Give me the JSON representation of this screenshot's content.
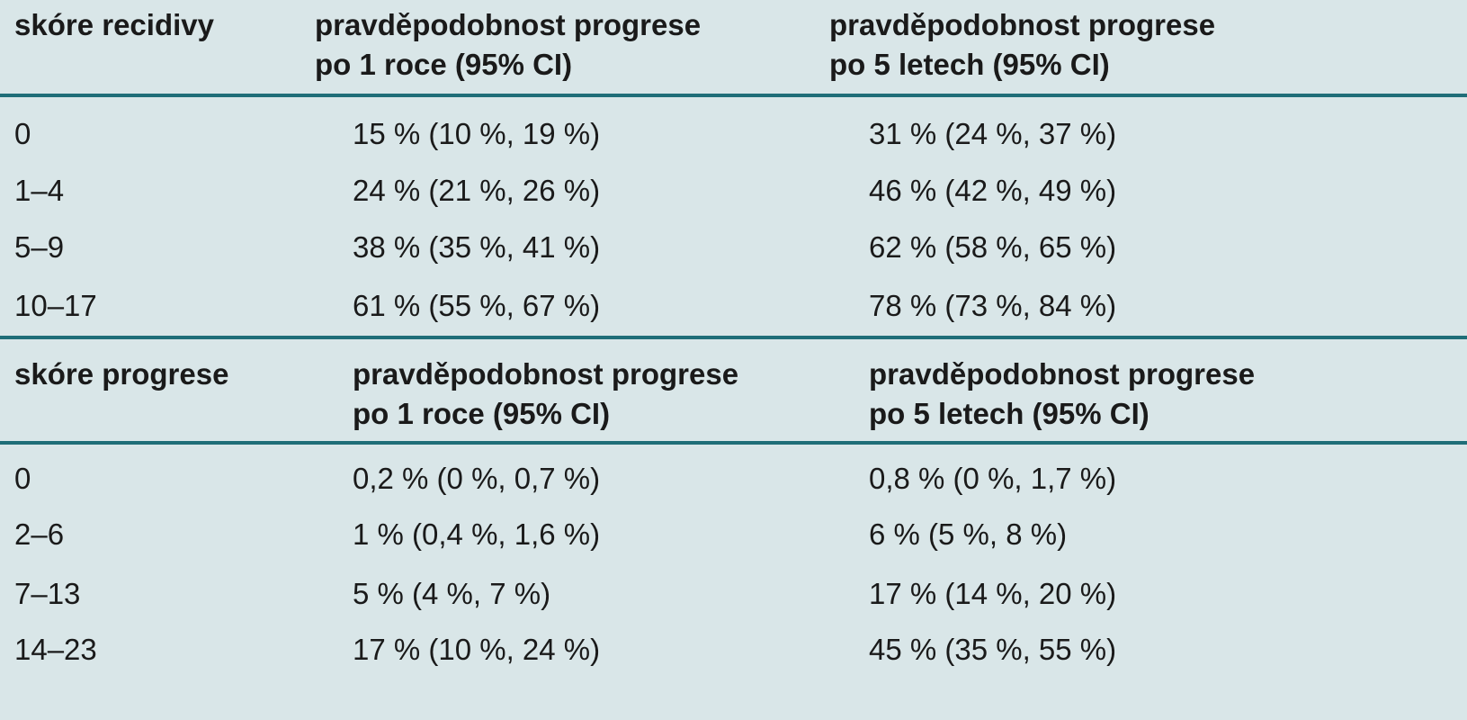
{
  "table1": {
    "headers": {
      "col1": "skóre recidivy",
      "col2_line1": "pravděpodobnost progrese",
      "col2_line2": "po 1 roce (95% CI)",
      "col3_line1": "pravděpodobnost progrese",
      "col3_line2": "po 5 letech (95% CI)"
    },
    "rows": [
      {
        "score": "0",
        "one_year": "15 % (10 %, 19 %)",
        "five_years": "31 % (24 %, 37 %)"
      },
      {
        "score": "1–4",
        "one_year": "24 % (21 %, 26 %)",
        "five_years": "46 % (42 %, 49 %)"
      },
      {
        "score": "5–9",
        "one_year": "38 % (35 %, 41 %)",
        "five_years": "62 % (58 %, 65 %)"
      },
      {
        "score": "10–17",
        "one_year": "61 % (55 %, 67 %)",
        "five_years": "78 % (73 %, 84 %)"
      }
    ]
  },
  "table2": {
    "headers": {
      "col1": "skóre progrese",
      "col2_line1": "pravděpodobnost progrese",
      "col2_line2": "po 1 roce (95% CI)",
      "col3_line1": "pravděpodobnost progrese",
      "col3_line2": "po 5 letech (95% CI)"
    },
    "rows": [
      {
        "score": "0",
        "one_year": "0,2 % (0 %, 0,7 %)",
        "five_years": "0,8 % (0 %, 1,7 %)"
      },
      {
        "score": "2–6",
        "one_year": "1 % (0,4 %, 1,6 %)",
        "five_years": "6 % (5 %, 8 %)"
      },
      {
        "score": "7–13",
        "one_year": "5 % (4 %, 7 %)",
        "five_years": "17 % (14 %, 20 %)"
      },
      {
        "score": "14–23",
        "one_year": "17 % (10 %, 24 %)",
        "five_years": "45 % (35 %, 55 %)"
      }
    ]
  },
  "colors": {
    "background": "#d9e6e8",
    "rule": "#1f6e78",
    "text": "#1a1a1a"
  }
}
